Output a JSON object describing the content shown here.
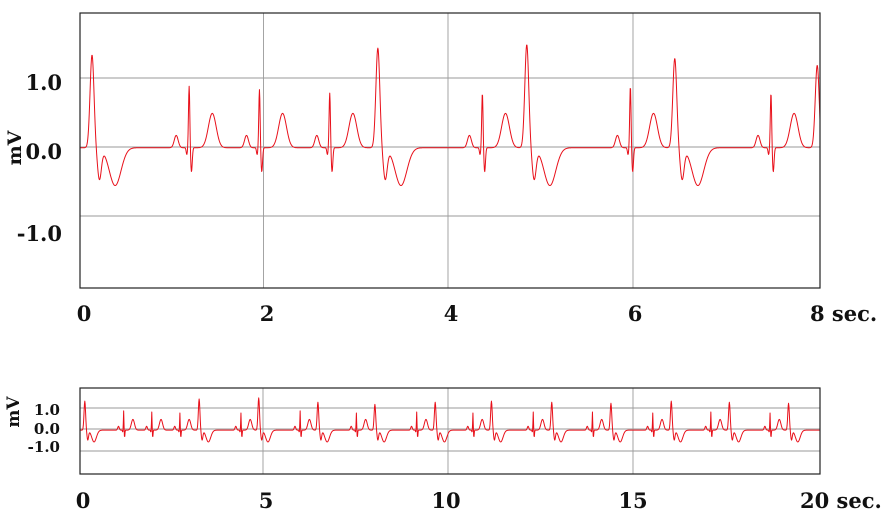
{
  "colors": {
    "trace": "#e8101a",
    "grid": "#9a9a9a",
    "frame": "#222222"
  },
  "chart_data": [
    {
      "type": "line",
      "title": "",
      "ylabel": "mV",
      "xlabel": "",
      "xlim": [
        0,
        8
      ],
      "ylim": [
        -2.0,
        2.0
      ],
      "grid": true,
      "x_ticks": [
        0,
        2,
        4,
        6,
        8
      ],
      "x_tick_labels": [
        "0",
        "2",
        "4",
        "6",
        "8 sec."
      ],
      "y_ticks": [
        1.0,
        0.0,
        -1.0
      ],
      "y_tick_labels": [
        "1.0",
        "0.0",
        "-1.0"
      ],
      "series": [
        {
          "beats": [
            {
              "t": 0.13,
              "type": "pvc",
              "amp": 1.35
            },
            {
              "t": 1.18,
              "type": "normal",
              "amp": 0.9
            },
            {
              "t": 1.94,
              "type": "normal",
              "amp": 0.85
            },
            {
              "t": 2.7,
              "type": "normal",
              "amp": 0.8
            },
            {
              "t": 3.22,
              "type": "pvc",
              "amp": 1.45
            },
            {
              "t": 4.35,
              "type": "normal",
              "amp": 0.8
            },
            {
              "t": 4.83,
              "type": "pvc",
              "amp": 1.5
            },
            {
              "t": 5.95,
              "type": "normal",
              "amp": 0.9
            },
            {
              "t": 6.43,
              "type": "pvc",
              "amp": 1.3
            },
            {
              "t": 7.47,
              "type": "normal",
              "amp": 0.8
            },
            {
              "t": 7.97,
              "type": "pvc",
              "amp": 1.2
            }
          ]
        }
      ]
    },
    {
      "type": "line",
      "title": "",
      "ylabel": "mV",
      "xlabel": "",
      "xlim": [
        0,
        20
      ],
      "ylim": [
        -2.0,
        2.0
      ],
      "grid": true,
      "x_ticks": [
        0,
        5,
        10,
        15,
        20
      ],
      "x_tick_labels": [
        "0",
        "5",
        "10",
        "15",
        "20 sec."
      ],
      "y_ticks": [
        1.0,
        0.0,
        -1.0
      ],
      "y_tick_labels": [
        "1.0",
        "0.0",
        "-1.0"
      ],
      "series": [
        {
          "beats": [
            {
              "t": 0.13,
              "type": "pvc",
              "amp": 1.35
            },
            {
              "t": 1.18,
              "type": "normal",
              "amp": 0.9
            },
            {
              "t": 1.94,
              "type": "normal",
              "amp": 0.85
            },
            {
              "t": 2.7,
              "type": "normal",
              "amp": 0.8
            },
            {
              "t": 3.22,
              "type": "pvc",
              "amp": 1.45
            },
            {
              "t": 4.35,
              "type": "normal",
              "amp": 0.8
            },
            {
              "t": 4.83,
              "type": "pvc",
              "amp": 1.5
            },
            {
              "t": 5.95,
              "type": "normal",
              "amp": 0.9
            },
            {
              "t": 6.43,
              "type": "pvc",
              "amp": 1.3
            },
            {
              "t": 7.47,
              "type": "normal",
              "amp": 0.8
            },
            {
              "t": 7.97,
              "type": "pvc",
              "amp": 1.2
            },
            {
              "t": 9.1,
              "type": "normal",
              "amp": 0.85
            },
            {
              "t": 9.6,
              "type": "pvc",
              "amp": 1.3
            },
            {
              "t": 10.62,
              "type": "normal",
              "amp": 0.8
            },
            {
              "t": 11.12,
              "type": "pvc",
              "amp": 1.35
            },
            {
              "t": 12.25,
              "type": "normal",
              "amp": 0.85
            },
            {
              "t": 12.75,
              "type": "pvc",
              "amp": 1.3
            },
            {
              "t": 13.85,
              "type": "normal",
              "amp": 0.85
            },
            {
              "t": 14.35,
              "type": "pvc",
              "amp": 1.25
            },
            {
              "t": 15.48,
              "type": "normal",
              "amp": 0.8
            },
            {
              "t": 15.98,
              "type": "pvc",
              "amp": 1.35
            },
            {
              "t": 17.05,
              "type": "normal",
              "amp": 0.85
            },
            {
              "t": 17.55,
              "type": "pvc",
              "amp": 1.3
            },
            {
              "t": 18.65,
              "type": "normal",
              "amp": 0.8
            },
            {
              "t": 19.15,
              "type": "pvc",
              "amp": 1.25
            }
          ]
        }
      ]
    }
  ]
}
